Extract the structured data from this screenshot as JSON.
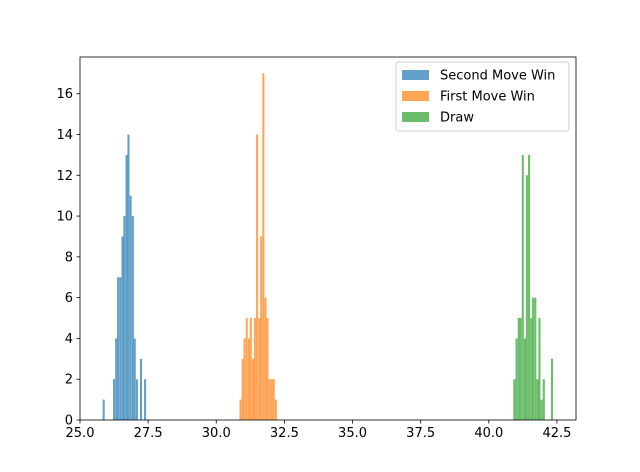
{
  "chart_data": {
    "type": "histogram",
    "title": "",
    "xlabel": "",
    "ylabel": "",
    "xlim": [
      25.0,
      43.2
    ],
    "ylim": [
      0,
      17.8
    ],
    "xticks": [
      "25.0",
      "27.5",
      "30.0",
      "32.5",
      "35.0",
      "37.5",
      "40.0",
      "42.5"
    ],
    "yticks": [
      "0",
      "2",
      "4",
      "6",
      "8",
      "10",
      "12",
      "14",
      "16"
    ],
    "bin_width": 0.076,
    "legend_position": "upper-right",
    "series": [
      {
        "name": "Second Move Win",
        "color": "#1f77b4",
        "bins": [
          {
            "x": 25.83,
            "count": 1
          },
          {
            "x": 26.21,
            "count": 2
          },
          {
            "x": 26.29,
            "count": 4
          },
          {
            "x": 26.36,
            "count": 7
          },
          {
            "x": 26.44,
            "count": 7
          },
          {
            "x": 26.52,
            "count": 9
          },
          {
            "x": 26.59,
            "count": 10
          },
          {
            "x": 26.67,
            "count": 13
          },
          {
            "x": 26.74,
            "count": 14
          },
          {
            "x": 26.82,
            "count": 11
          },
          {
            "x": 26.9,
            "count": 10
          },
          {
            "x": 26.97,
            "count": 4
          },
          {
            "x": 27.05,
            "count": 2
          },
          {
            "x": 27.2,
            "count": 3
          },
          {
            "x": 27.35,
            "count": 2
          }
        ]
      },
      {
        "name": "First Move Win",
        "color": "#ff7f0e",
        "bins": [
          {
            "x": 30.85,
            "count": 1
          },
          {
            "x": 30.93,
            "count": 3
          },
          {
            "x": 31.0,
            "count": 4
          },
          {
            "x": 31.08,
            "count": 5
          },
          {
            "x": 31.16,
            "count": 4
          },
          {
            "x": 31.23,
            "count": 5
          },
          {
            "x": 31.31,
            "count": 3
          },
          {
            "x": 31.38,
            "count": 5
          },
          {
            "x": 31.46,
            "count": 14
          },
          {
            "x": 31.54,
            "count": 5
          },
          {
            "x": 31.61,
            "count": 9
          },
          {
            "x": 31.69,
            "count": 17
          },
          {
            "x": 31.77,
            "count": 6
          },
          {
            "x": 31.84,
            "count": 5
          },
          {
            "x": 31.92,
            "count": 2
          },
          {
            "x": 32.0,
            "count": 2
          },
          {
            "x": 32.07,
            "count": 2
          },
          {
            "x": 32.15,
            "count": 1
          }
        ]
      },
      {
        "name": "Draw",
        "color": "#2ca02c",
        "bins": [
          {
            "x": 40.9,
            "count": 2
          },
          {
            "x": 40.98,
            "count": 4
          },
          {
            "x": 41.06,
            "count": 5
          },
          {
            "x": 41.13,
            "count": 5
          },
          {
            "x": 41.21,
            "count": 13
          },
          {
            "x": 41.29,
            "count": 4
          },
          {
            "x": 41.36,
            "count": 12
          },
          {
            "x": 41.44,
            "count": 13
          },
          {
            "x": 41.52,
            "count": 5
          },
          {
            "x": 41.59,
            "count": 6
          },
          {
            "x": 41.67,
            "count": 6
          },
          {
            "x": 41.75,
            "count": 2
          },
          {
            "x": 41.82,
            "count": 5
          },
          {
            "x": 41.9,
            "count": 1
          },
          {
            "x": 41.98,
            "count": 2
          },
          {
            "x": 42.28,
            "count": 3
          }
        ]
      }
    ]
  }
}
